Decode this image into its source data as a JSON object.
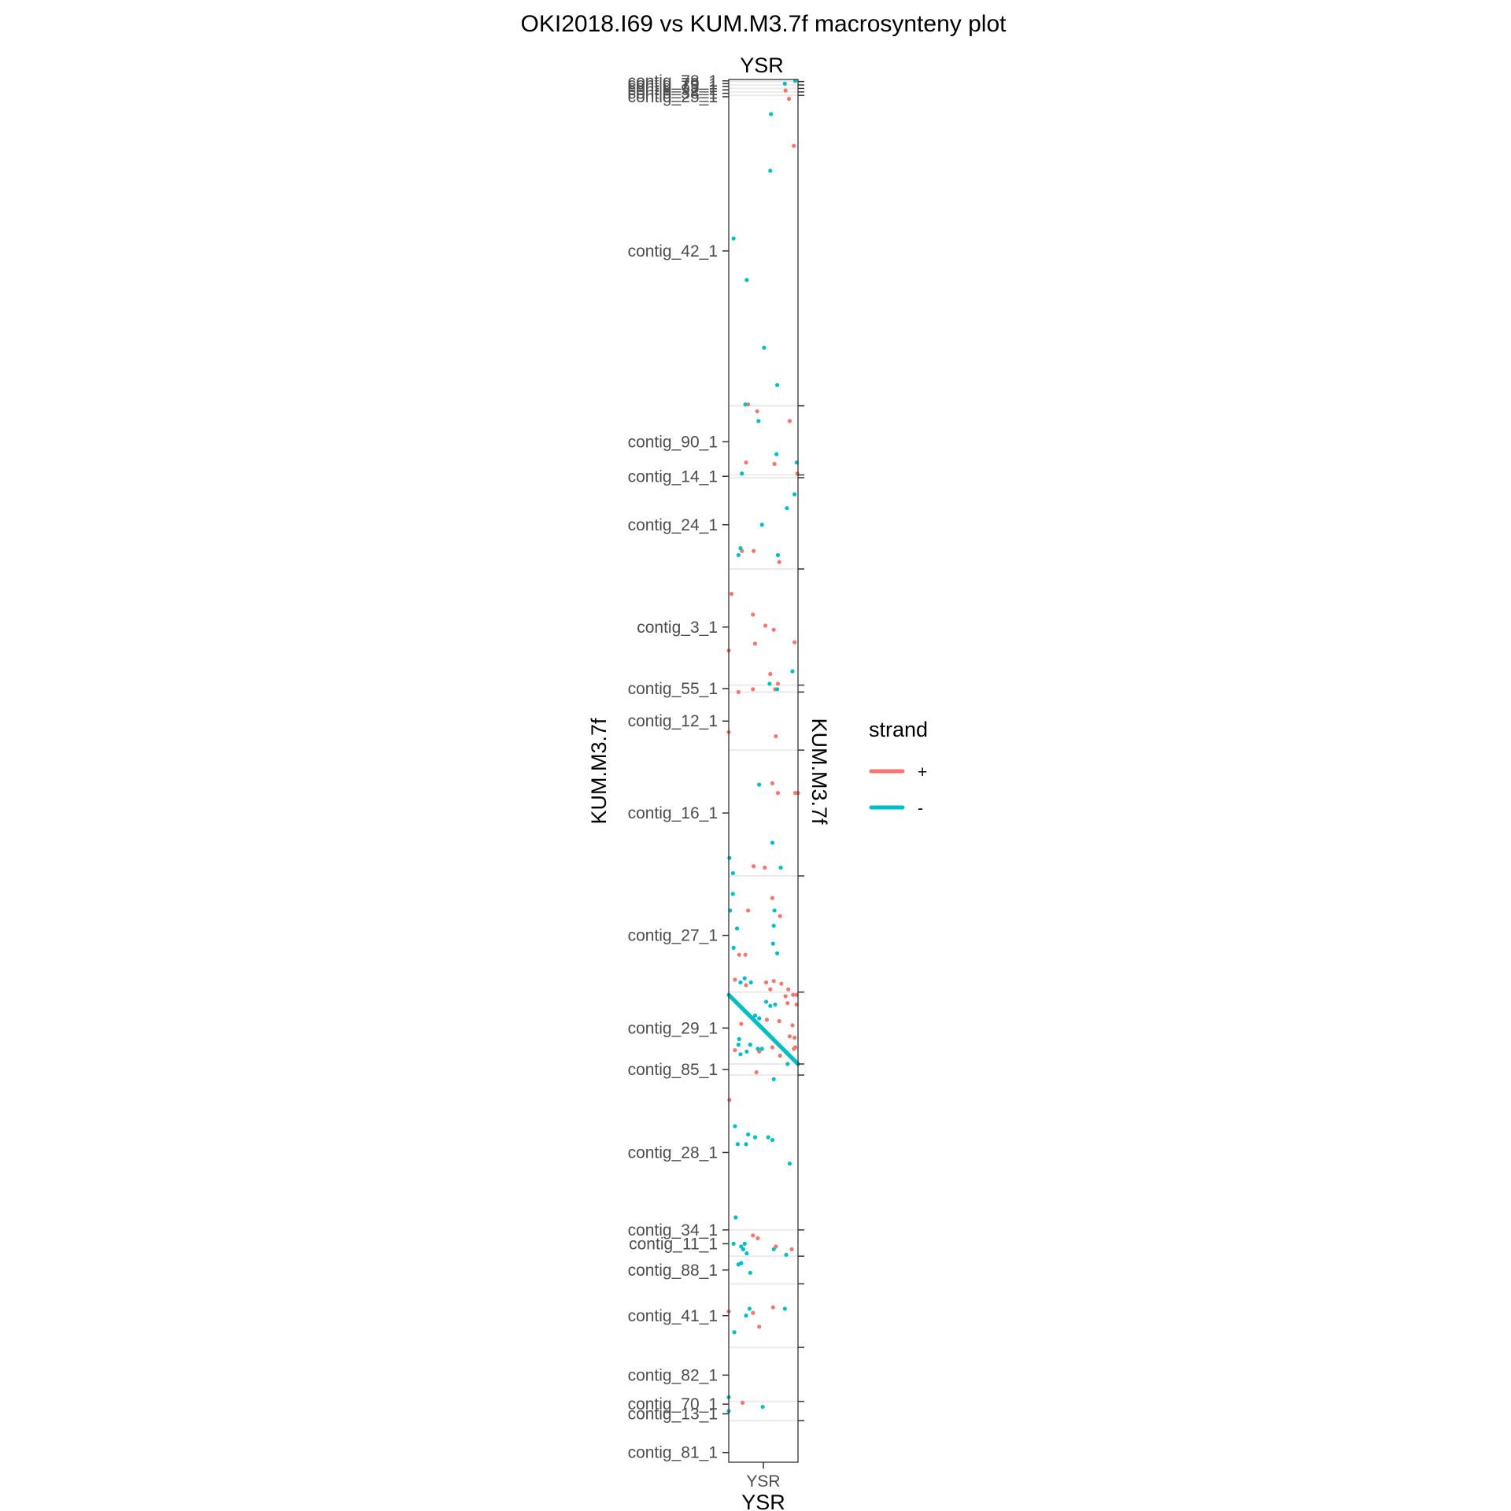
{
  "chart_data": {
    "type": "scatter",
    "title": "OKI2018.I69 vs KUM.M3.7f macrosynteny plot",
    "facet_label": "YSR",
    "x_axis": {
      "title": "YSR",
      "tick_label": "YSR",
      "range": [
        0,
        1
      ]
    },
    "y_axis": {
      "title_left": "KUM.M3.7f",
      "title_right": "KUM.M3.7f",
      "range": [
        0,
        1
      ],
      "reversed": true,
      "contig_labels": [
        {
          "label": "contig_78_1",
          "pos": 0.001
        },
        {
          "label": "contig_79_1",
          "pos": 0.003
        },
        {
          "label": "contig_73_1",
          "pos": 0.005
        },
        {
          "label": "contig_92_1",
          "pos": 0.0075
        },
        {
          "label": "contig_38_1",
          "pos": 0.01
        },
        {
          "label": "contig_25_1",
          "pos": 0.0125
        },
        {
          "label": "contig_42_1",
          "pos": 0.124
        },
        {
          "label": "contig_90_1",
          "pos": 0.262
        },
        {
          "label": "contig_14_1",
          "pos": 0.287
        },
        {
          "label": "contig_24_1",
          "pos": 0.322
        },
        {
          "label": "contig_3_1",
          "pos": 0.396
        },
        {
          "label": "contig_55_1",
          "pos": 0.4405
        },
        {
          "label": "contig_12_1",
          "pos": 0.464
        },
        {
          "label": "contig_16_1",
          "pos": 0.5305
        },
        {
          "label": "contig_27_1",
          "pos": 0.619
        },
        {
          "label": "contig_29_1",
          "pos": 0.686
        },
        {
          "label": "contig_85_1",
          "pos": 0.716
        },
        {
          "label": "contig_28_1",
          "pos": 0.776
        },
        {
          "label": "contig_34_1",
          "pos": 0.832
        },
        {
          "label": "contig_11_1",
          "pos": 0.842
        },
        {
          "label": "contig_88_1",
          "pos": 0.861
        },
        {
          "label": "contig_41_1",
          "pos": 0.894
        },
        {
          "label": "contig_82_1",
          "pos": 0.937
        },
        {
          "label": "contig_70_1",
          "pos": 0.958
        },
        {
          "label": "contig_13_1",
          "pos": 0.965
        },
        {
          "label": "contig_81_1",
          "pos": 0.993
        }
      ],
      "boundaries": [
        0.0015,
        0.004,
        0.0065,
        0.009,
        0.0115,
        0.236,
        0.286,
        0.288,
        0.354,
        0.438,
        0.443,
        0.485,
        0.576,
        0.66,
        0.712,
        0.72,
        0.832,
        0.851,
        0.871,
        0.917,
        0.956,
        0.97
      ]
    },
    "legend": {
      "title": "strand",
      "placement": "right",
      "entries": [
        {
          "label": "+",
          "color": "#F8766D"
        },
        {
          "label": "-",
          "color": "#00BFC4"
        }
      ]
    },
    "strand_colors": {
      "+": "#F8766D",
      "-": "#00BFC4"
    },
    "points_plus": [
      [
        0.82,
        0.008
      ],
      [
        0.87,
        0.014
      ],
      [
        0.94,
        0.048
      ],
      [
        0.28,
        0.235
      ],
      [
        0.41,
        0.24
      ],
      [
        0.88,
        0.247
      ],
      [
        0.25,
        0.277
      ],
      [
        0.66,
        0.278
      ],
      [
        0.99,
        0.285
      ],
      [
        0.19,
        0.341
      ],
      [
        0.36,
        0.341
      ],
      [
        0.73,
        0.349
      ],
      [
        0.04,
        0.372
      ],
      [
        0.35,
        0.387
      ],
      [
        0.53,
        0.395
      ],
      [
        0.65,
        0.398
      ],
      [
        0.38,
        0.408
      ],
      [
        0.95,
        0.407
      ],
      [
        0.0,
        0.413
      ],
      [
        0.6,
        0.43
      ],
      [
        0.71,
        0.437
      ],
      [
        0.14,
        0.443
      ],
      [
        0.35,
        0.441
      ],
      [
        0.67,
        0.441
      ],
      [
        0.0,
        0.472
      ],
      [
        0.68,
        0.475
      ],
      [
        0.63,
        0.509
      ],
      [
        0.71,
        0.516
      ],
      [
        0.96,
        0.516
      ],
      [
        1.0,
        0.516
      ],
      [
        0.36,
        0.569
      ],
      [
        0.52,
        0.57
      ],
      [
        0.63,
        0.592
      ],
      [
        0.28,
        0.601
      ],
      [
        0.74,
        0.605
      ],
      [
        0.15,
        0.633
      ],
      [
        0.24,
        0.633
      ],
      [
        0.09,
        0.651
      ],
      [
        0.25,
        0.655
      ],
      [
        0.54,
        0.653
      ],
      [
        0.65,
        0.652
      ],
      [
        0.76,
        0.654
      ],
      [
        0.6,
        0.658
      ],
      [
        0.86,
        0.658
      ],
      [
        0.93,
        0.662
      ],
      [
        0.98,
        0.662
      ],
      [
        0.82,
        0.663
      ],
      [
        0.85,
        0.668
      ],
      [
        0.98,
        0.669
      ],
      [
        0.55,
        0.68
      ],
      [
        0.73,
        0.681
      ],
      [
        0.18,
        0.683
      ],
      [
        0.92,
        0.684
      ],
      [
        0.88,
        0.692
      ],
      [
        0.95,
        0.693
      ],
      [
        0.63,
        0.7
      ],
      [
        0.09,
        0.702
      ],
      [
        0.44,
        0.703
      ],
      [
        0.74,
        0.706
      ],
      [
        0.94,
        0.701
      ],
      [
        0.96,
        0.7
      ],
      [
        0.4,
        0.718
      ],
      [
        0.01,
        0.738
      ],
      [
        0.35,
        0.836
      ],
      [
        0.42,
        0.838
      ],
      [
        0.68,
        0.844
      ],
      [
        0.91,
        0.846
      ],
      [
        0.0,
        0.891
      ],
      [
        0.35,
        0.892
      ],
      [
        0.64,
        0.888
      ],
      [
        0.44,
        0.902
      ],
      [
        0.2,
        0.957
      ]
    ],
    "points_minus": [
      [
        0.96,
        0.001
      ],
      [
        0.81,
        0.003
      ],
      [
        0.61,
        0.025
      ],
      [
        0.6,
        0.066
      ],
      [
        0.07,
        0.115
      ],
      [
        0.26,
        0.145
      ],
      [
        0.51,
        0.194
      ],
      [
        0.7,
        0.221
      ],
      [
        0.24,
        0.235
      ],
      [
        0.43,
        0.247
      ],
      [
        0.69,
        0.271
      ],
      [
        0.98,
        0.277
      ],
      [
        0.19,
        0.285
      ],
      [
        0.95,
        0.3
      ],
      [
        0.48,
        0.322
      ],
      [
        0.84,
        0.31
      ],
      [
        0.17,
        0.339
      ],
      [
        0.14,
        0.344
      ],
      [
        0.71,
        0.344
      ],
      [
        0.92,
        0.428
      ],
      [
        0.59,
        0.437
      ],
      [
        0.7,
        0.441
      ],
      [
        0.44,
        0.51
      ],
      [
        0.63,
        0.552
      ],
      [
        0.01,
        0.563
      ],
      [
        0.06,
        0.574
      ],
      [
        0.75,
        0.57
      ],
      [
        0.06,
        0.589
      ],
      [
        0.02,
        0.601
      ],
      [
        0.66,
        0.601
      ],
      [
        0.65,
        0.612
      ],
      [
        0.12,
        0.614
      ],
      [
        0.64,
        0.625
      ],
      [
        0.07,
        0.628
      ],
      [
        0.7,
        0.632
      ],
      [
        0.23,
        0.65
      ],
      [
        0.17,
        0.653
      ],
      [
        0.32,
        0.653
      ],
      [
        0.54,
        0.667
      ],
      [
        0.6,
        0.67
      ],
      [
        0.67,
        0.669
      ],
      [
        0.38,
        0.677
      ],
      [
        0.44,
        0.679
      ],
      [
        0.15,
        0.694
      ],
      [
        0.14,
        0.698
      ],
      [
        0.31,
        0.698
      ],
      [
        0.42,
        0.701
      ],
      [
        0.48,
        0.701
      ],
      [
        0.17,
        0.705
      ],
      [
        0.26,
        0.703
      ],
      [
        0.85,
        0.712
      ],
      [
        0.65,
        0.723
      ],
      [
        0.09,
        0.757
      ],
      [
        0.28,
        0.763
      ],
      [
        0.38,
        0.765
      ],
      [
        0.57,
        0.765
      ],
      [
        0.13,
        0.77
      ],
      [
        0.25,
        0.77
      ],
      [
        0.63,
        0.767
      ],
      [
        0.88,
        0.784
      ],
      [
        0.1,
        0.823
      ],
      [
        0.07,
        0.842
      ],
      [
        0.23,
        0.842
      ],
      [
        0.18,
        0.844
      ],
      [
        0.26,
        0.849
      ],
      [
        0.65,
        0.846
      ],
      [
        0.21,
        0.846
      ],
      [
        0.83,
        0.85
      ],
      [
        0.31,
        0.863
      ],
      [
        0.14,
        0.857
      ],
      [
        0.18,
        0.856
      ],
      [
        0.3,
        0.889
      ],
      [
        0.25,
        0.894
      ],
      [
        0.81,
        0.889
      ],
      [
        0.08,
        0.906
      ],
      [
        0.0,
        0.953
      ],
      [
        0.0,
        0.963
      ],
      [
        0.49,
        0.96
      ]
    ],
    "points_minus_diagonal": {
      "x_start": 0.0,
      "y_start": 0.662,
      "x_end": 1.0,
      "y_end": 0.712,
      "count": 130
    }
  }
}
